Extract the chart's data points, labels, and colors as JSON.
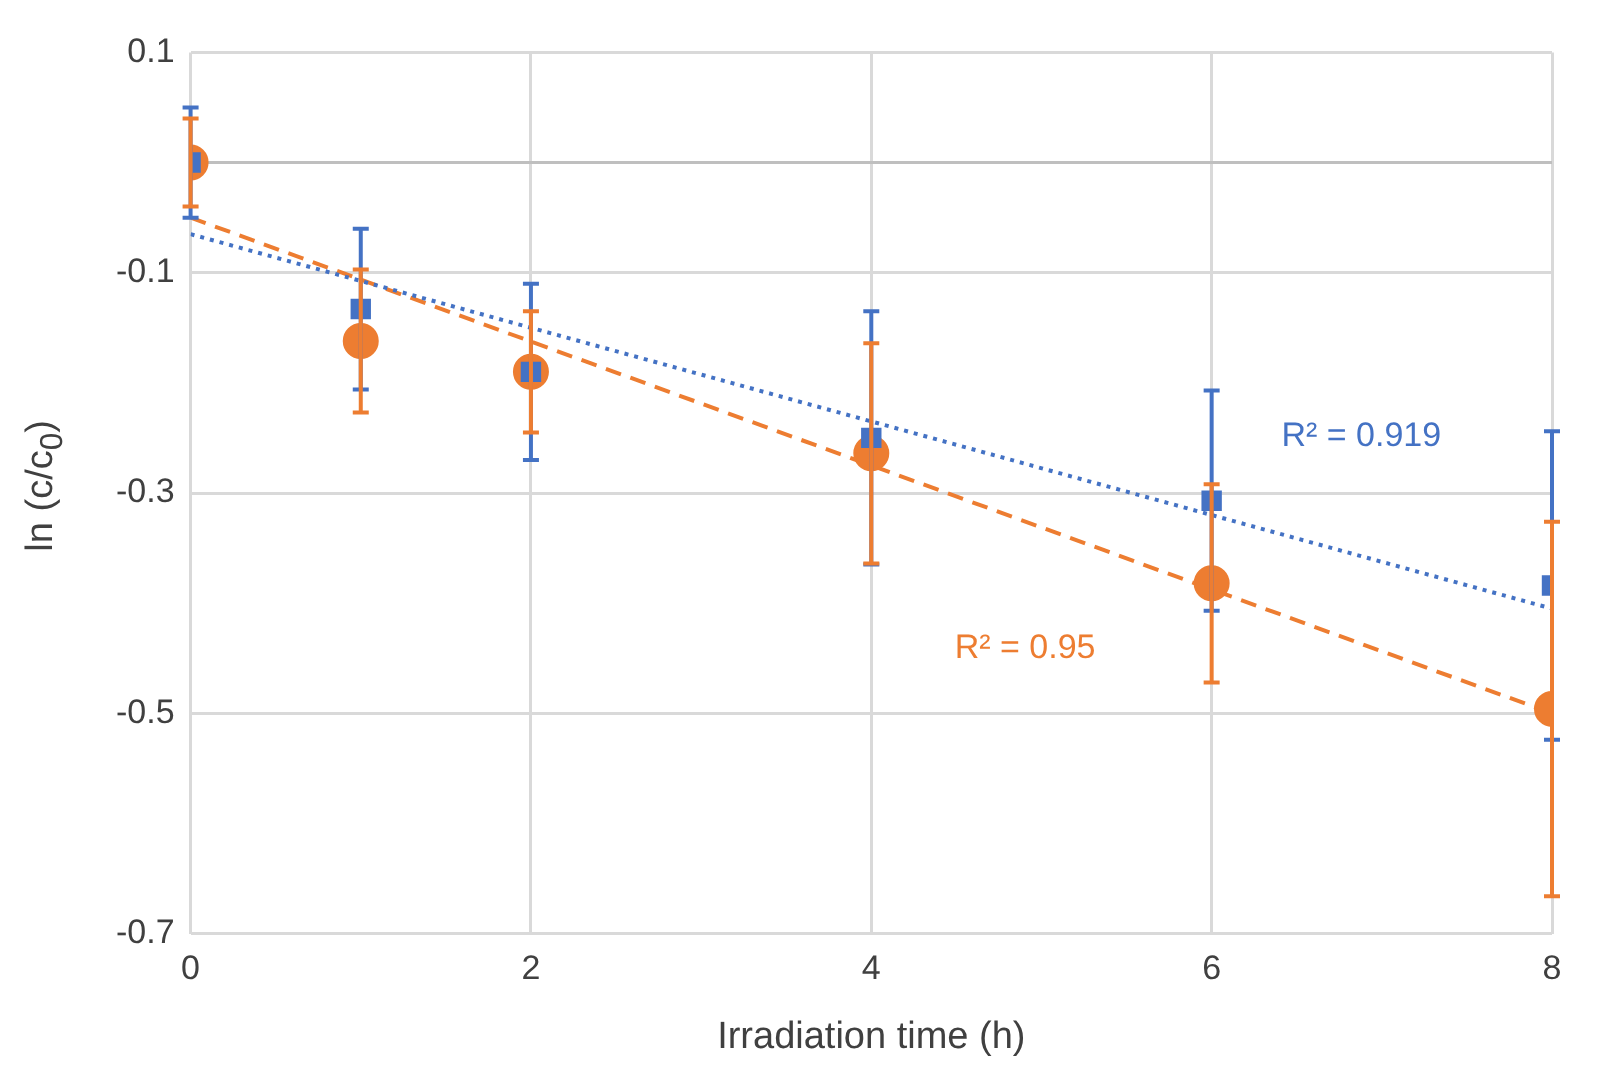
{
  "chart_data": {
    "type": "scatter",
    "xlabel": "Irradiation time (h)",
    "ylabel": "ln (c/c$_{0}$)",
    "xlim": [
      0,
      8
    ],
    "xticks": [
      0,
      2,
      4,
      6,
      8
    ],
    "ylim": [
      -0.7,
      0.1
    ],
    "yticks": [
      0.1,
      -0.1,
      -0.3,
      -0.5,
      -0.7
    ],
    "grid": true,
    "legend": false,
    "ref_lines": [
      {
        "axis": "y",
        "value": 0,
        "color": "#bfbfbf"
      }
    ],
    "series": [
      {
        "color": "#4472c4",
        "marker": "square",
        "x": [
          0,
          1,
          2,
          4,
          6,
          8
        ],
        "values": [
          0,
          -0.133,
          -0.19,
          -0.25,
          -0.307,
          -0.384
        ],
        "errors": [
          0.05,
          0.073,
          0.08,
          0.115,
          0.1,
          0.14
        ]
      },
      {
        "color": "#ed7d31",
        "marker": "circle",
        "x": [
          0,
          1,
          2,
          4,
          6,
          8
        ],
        "values": [
          0,
          -0.162,
          -0.19,
          -0.264,
          -0.382,
          -0.496
        ],
        "errors": [
          0.04,
          0.065,
          0.055,
          0.1,
          0.09,
          0.17
        ]
      },
      {
        "type": "line",
        "color": "#4472c4",
        "line_style": "dotted",
        "marker": "none",
        "x": [
          0,
          8
        ],
        "values": [
          -0.065,
          -0.405
        ]
      },
      {
        "type": "line",
        "color": "#ed7d31",
        "line_style": "dashed",
        "marker": "none",
        "x": [
          0,
          8
        ],
        "values": [
          -0.05,
          -0.5
        ]
      }
    ],
    "annotations": [
      "R² = 0.919",
      "R² = 0.95"
    ]
  }
}
